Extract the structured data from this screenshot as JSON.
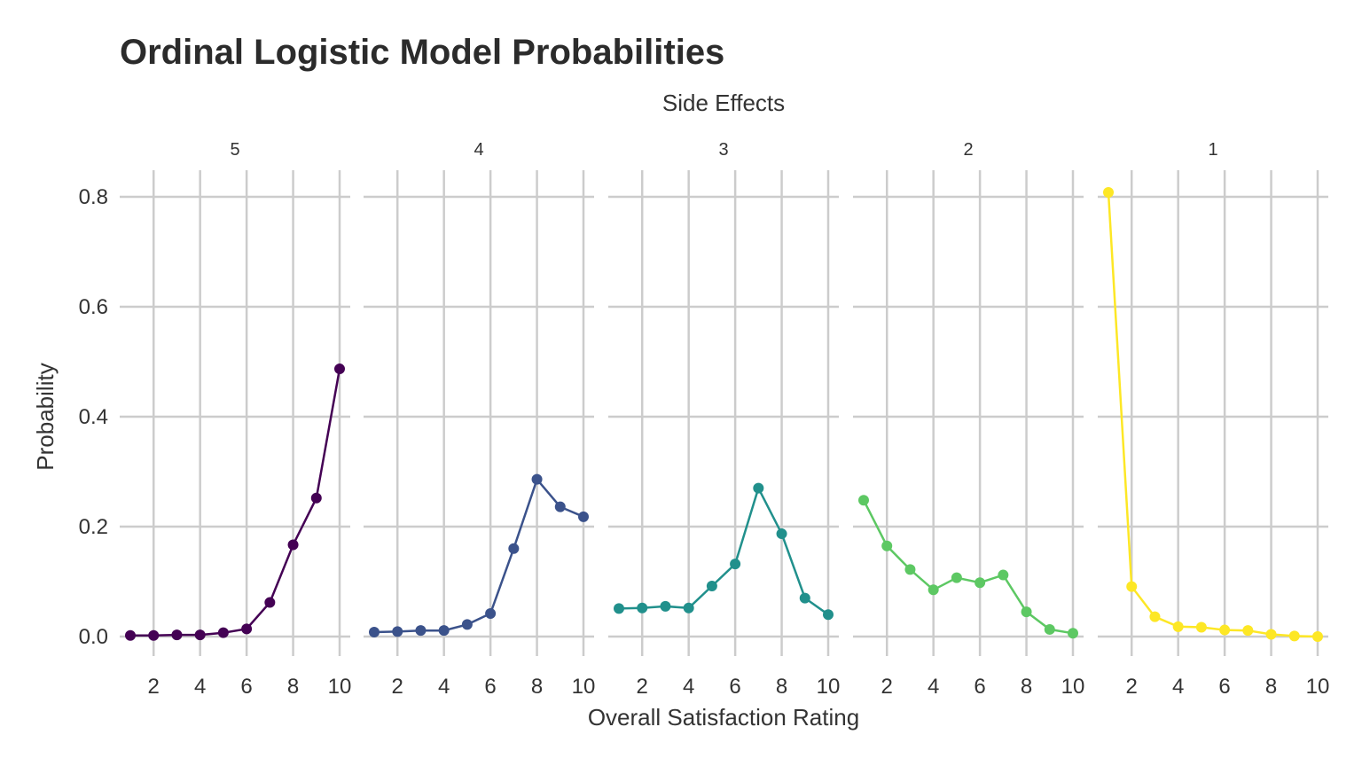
{
  "chart_data": {
    "type": "line",
    "title": "Ordinal Logistic Model Probabilities",
    "facet_title": "Side Effects",
    "xlabel": "Overall Satisfaction Rating",
    "ylabel": "Probability",
    "x": [
      1,
      2,
      3,
      4,
      5,
      6,
      7,
      8,
      9,
      10
    ],
    "xlim": [
      1,
      10
    ],
    "ylim": [
      0,
      0.8
    ],
    "x_ticks": [
      2,
      4,
      6,
      8,
      10
    ],
    "x_tick_labels": [
      "2",
      "4",
      "6",
      "8",
      "10"
    ],
    "y_ticks": [
      0,
      0.2,
      0.4,
      0.6,
      0.8
    ],
    "y_tick_labels": [
      "0.0",
      "0.2",
      "0.4",
      "0.6",
      "0.8"
    ],
    "grid": true,
    "legend": "none",
    "facets": [
      {
        "label": "5",
        "color": "#440154",
        "values": [
          0.002,
          0.002,
          0.003,
          0.003,
          0.007,
          0.014,
          0.062,
          0.167,
          0.252,
          0.487
        ]
      },
      {
        "label": "4",
        "color": "#3b528b",
        "values": [
          0.008,
          0.009,
          0.011,
          0.011,
          0.022,
          0.042,
          0.16,
          0.286,
          0.236,
          0.218
        ]
      },
      {
        "label": "3",
        "color": "#21908c",
        "values": [
          0.051,
          0.052,
          0.055,
          0.052,
          0.092,
          0.132,
          0.27,
          0.187,
          0.07,
          0.04
        ]
      },
      {
        "label": "2",
        "color": "#5dc863",
        "values": [
          0.248,
          0.165,
          0.122,
          0.085,
          0.107,
          0.098,
          0.112,
          0.045,
          0.013,
          0.006
        ]
      },
      {
        "label": "1",
        "color": "#fde725",
        "values": [
          0.808,
          0.091,
          0.036,
          0.018,
          0.017,
          0.012,
          0.011,
          0.004,
          0.001,
          0.0
        ]
      }
    ]
  }
}
